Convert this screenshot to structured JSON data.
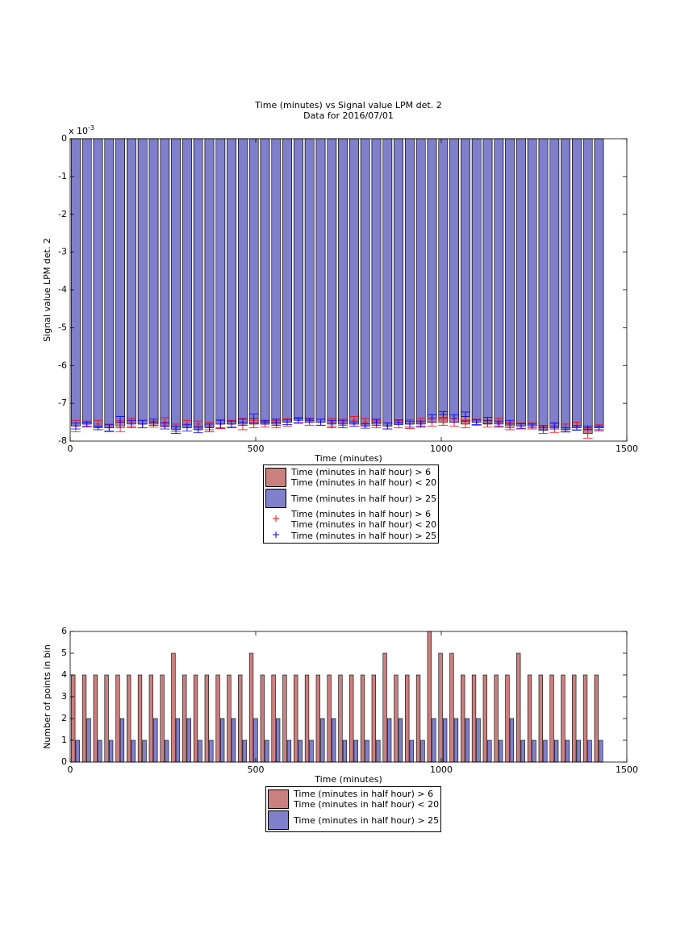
{
  "chart_data": [
    {
      "type": "bar",
      "barmode": "overlay",
      "title": "Time (minutes) vs Signal value LPM det. 2",
      "subtitle": "Data for 2016/07/01",
      "xlabel": "Time (minutes)",
      "ylabel": "Signal value LPM det. 2",
      "y_scale_base": "x 10",
      "y_scale_exponent": "-3",
      "xlim": [
        0,
        1500
      ],
      "xticks": [
        0,
        500,
        1000,
        1500
      ],
      "ylim": [
        -8,
        0
      ],
      "yticks": [
        -8,
        -7,
        -6,
        -5,
        -4,
        -3,
        -2,
        -1,
        0
      ],
      "x": [
        15,
        45,
        75,
        105,
        135,
        165,
        195,
        225,
        255,
        285,
        315,
        345,
        375,
        405,
        435,
        465,
        495,
        525,
        555,
        585,
        615,
        645,
        675,
        705,
        735,
        765,
        795,
        825,
        855,
        885,
        915,
        945,
        975,
        1005,
        1035,
        1065,
        1095,
        1125,
        1155,
        1185,
        1215,
        1245,
        1275,
        1305,
        1335,
        1365,
        1395,
        1425
      ],
      "series": [
        {
          "name": "Time (minutes in half hour) > 6\nTime (minutes in half hour) < 20",
          "style": "bar",
          "color": "#cc7f7f",
          "values": [
            -7.6,
            -7.55,
            -7.55,
            -7.65,
            -7.6,
            -7.5,
            -7.55,
            -7.55,
            -7.5,
            -7.65,
            -7.55,
            -7.55,
            -7.6,
            -7.55,
            -7.55,
            -7.55,
            -7.55,
            -7.55,
            -7.55,
            -7.5,
            -7.45,
            -7.5,
            -7.5,
            -7.5,
            -7.5,
            -7.45,
            -7.5,
            -7.55,
            -7.6,
            -7.55,
            -7.55,
            -7.5,
            -7.5,
            -7.5,
            -7.5,
            -7.55,
            -7.5,
            -7.55,
            -7.5,
            -7.6,
            -7.6,
            -7.6,
            -7.7,
            -7.65,
            -7.65,
            -7.6,
            -7.8,
            -7.65
          ]
        },
        {
          "name": "Time (minutes in half hour) > 25",
          "style": "bar",
          "color": "#7f7fcc",
          "values": [
            -7.6,
            -7.55,
            -7.65,
            -7.65,
            -7.5,
            -7.55,
            -7.55,
            -7.5,
            -7.6,
            -7.7,
            -7.65,
            -7.7,
            -7.65,
            -7.55,
            -7.55,
            -7.5,
            -7.4,
            -7.5,
            -7.5,
            -7.5,
            -7.45,
            -7.45,
            -7.5,
            -7.55,
            -7.55,
            -7.55,
            -7.6,
            -7.5,
            -7.6,
            -7.5,
            -7.55,
            -7.55,
            -7.4,
            -7.3,
            -7.4,
            -7.35,
            -7.5,
            -7.45,
            -7.55,
            -7.55,
            -7.6,
            -7.6,
            -7.65,
            -7.6,
            -7.7,
            -7.65,
            -7.65,
            -7.65
          ]
        },
        {
          "name": "Time (minutes in half hour) > 6\nTime (minutes in half hour) < 20",
          "style": "errorbar",
          "color": "#ff0000",
          "values": [
            -7.6,
            -7.55,
            -7.55,
            -7.65,
            -7.6,
            -7.5,
            -7.55,
            -7.55,
            -7.5,
            -7.65,
            -7.55,
            -7.55,
            -7.6,
            -7.55,
            -7.55,
            -7.55,
            -7.55,
            -7.55,
            -7.55,
            -7.5,
            -7.45,
            -7.5,
            -7.5,
            -7.5,
            -7.5,
            -7.45,
            -7.5,
            -7.55,
            -7.6,
            -7.55,
            -7.55,
            -7.5,
            -7.5,
            -7.5,
            -7.5,
            -7.55,
            -7.5,
            -7.55,
            -7.5,
            -7.6,
            -7.6,
            -7.6,
            -7.7,
            -7.65,
            -7.65,
            -7.6,
            -7.8,
            -7.65
          ],
          "errors": [
            0.15,
            0.08,
            0.1,
            0.1,
            0.15,
            0.1,
            0.1,
            0.08,
            0.12,
            0.1,
            0.1,
            0.08,
            0.1,
            0.12,
            0.1,
            0.15,
            0.1,
            0.08,
            0.1,
            0.1,
            0.08,
            0.08,
            0.08,
            0.1,
            0.08,
            0.1,
            0.1,
            0.1,
            0.08,
            0.1,
            0.12,
            0.1,
            0.1,
            0.08,
            0.1,
            0.1,
            0.08,
            0.08,
            0.1,
            0.1,
            0.08,
            0.08,
            0.1,
            0.12,
            0.1,
            0.1,
            0.12,
            0.08
          ]
        },
        {
          "name": "Time (minutes in half hour) > 25",
          "style": "errorbar",
          "color": "#0000ff",
          "values": [
            -7.6,
            -7.55,
            -7.65,
            -7.65,
            -7.5,
            -7.55,
            -7.55,
            -7.5,
            -7.6,
            -7.7,
            -7.65,
            -7.7,
            -7.65,
            -7.55,
            -7.55,
            -7.5,
            -7.4,
            -7.5,
            -7.5,
            -7.5,
            -7.45,
            -7.45,
            -7.5,
            -7.55,
            -7.55,
            -7.55,
            -7.6,
            -7.5,
            -7.6,
            -7.5,
            -7.55,
            -7.55,
            -7.4,
            -7.3,
            -7.4,
            -7.35,
            -7.5,
            -7.45,
            -7.55,
            -7.55,
            -7.6,
            -7.6,
            -7.65,
            -7.6,
            -7.7,
            -7.65,
            -7.65,
            -7.65
          ],
          "errors": [
            0.08,
            0.05,
            0.05,
            0.08,
            0.15,
            0.1,
            0.1,
            0.08,
            0.08,
            0.1,
            0.08,
            0.08,
            0.1,
            0.1,
            0.08,
            0.08,
            0.12,
            0.05,
            0.08,
            0.06,
            0.06,
            0.05,
            0.08,
            0.1,
            0.1,
            0.06,
            0.06,
            0.08,
            0.08,
            0.06,
            0.08,
            0.08,
            0.1,
            0.08,
            0.1,
            0.12,
            0.06,
            0.08,
            0.08,
            0.1,
            0.06,
            0.05,
            0.06,
            0.08,
            0.06,
            0.06,
            0.05,
            0.05
          ]
        }
      ]
    },
    {
      "type": "bar",
      "barmode": "group",
      "xlabel": "Time (minutes)",
      "ylabel": "Number of points in bin",
      "xlim": [
        0,
        1500
      ],
      "xticks": [
        0,
        500,
        1000,
        1500
      ],
      "ylim": [
        0,
        6
      ],
      "yticks": [
        0,
        1,
        2,
        3,
        4,
        5,
        6
      ],
      "x": [
        15,
        45,
        75,
        105,
        135,
        165,
        195,
        225,
        255,
        285,
        315,
        345,
        375,
        405,
        435,
        465,
        495,
        525,
        555,
        585,
        615,
        645,
        675,
        705,
        735,
        765,
        795,
        825,
        855,
        885,
        915,
        945,
        975,
        1005,
        1035,
        1065,
        1095,
        1125,
        1155,
        1185,
        1215,
        1245,
        1275,
        1305,
        1335,
        1365,
        1395,
        1425
      ],
      "series": [
        {
          "name": "Time (minutes in half hour) > 6\nTime (minutes in half hour) < 20",
          "style": "bar",
          "color": "#cc7f7f",
          "values": [
            4,
            4,
            4,
            4,
            4,
            4,
            4,
            4,
            4,
            5,
            4,
            4,
            4,
            4,
            4,
            4,
            5,
            4,
            4,
            4,
            4,
            4,
            4,
            4,
            4,
            4,
            4,
            4,
            5,
            4,
            4,
            4,
            6,
            5,
            5,
            4,
            4,
            4,
            4,
            4,
            5,
            4,
            4,
            4,
            4,
            4,
            4,
            4
          ]
        },
        {
          "name": "Time (minutes in half hour) > 25",
          "style": "bar",
          "color": "#7f7fcc",
          "values": [
            1,
            2,
            1,
            1,
            2,
            1,
            1,
            2,
            1,
            2,
            2,
            1,
            1,
            2,
            2,
            1,
            2,
            1,
            2,
            1,
            1,
            1,
            2,
            2,
            1,
            1,
            1,
            1,
            2,
            2,
            1,
            1,
            2,
            2,
            2,
            2,
            2,
            1,
            1,
            2,
            1,
            1,
            1,
            1,
            1,
            1,
            1,
            1
          ]
        }
      ]
    }
  ]
}
